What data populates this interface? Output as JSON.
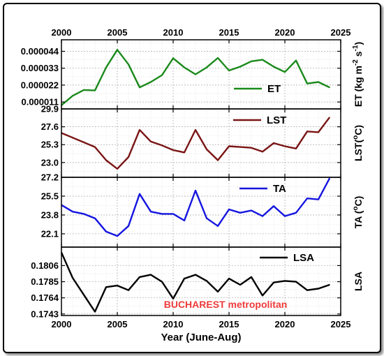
{
  "chart_data": {
    "type": "line",
    "xlabel": "Year (June-Aug)",
    "x_ticks": [
      "2000",
      "2005",
      "2010",
      "2015",
      "2020",
      "2025"
    ],
    "xlim": [
      2000,
      2025
    ],
    "annotation": "BUCHAREST metropolitan",
    "grid": true,
    "panels": [
      {
        "name": "ET",
        "ylabel": "ET (kg m⁻² s⁻¹)",
        "ylabel_parts": [
          "ET (kg m",
          "-2",
          " s",
          "-1",
          ")"
        ],
        "color": "#1a8a1a",
        "ylim": [
          6.5e-06,
          5.15e-05
        ],
        "y_ticks": [
          "0.000011",
          "0.000022",
          "0.000033",
          "0.000044"
        ],
        "y_tick_values": [
          1.1e-05,
          2.2e-05,
          3.3e-05,
          4.4e-05
        ],
        "legend": "ET",
        "x": [
          2000,
          2001,
          2002,
          2003,
          2004,
          2005,
          2006,
          2007,
          2008,
          2009,
          2010,
          2011,
          2012,
          2013,
          2014,
          2015,
          2016,
          2017,
          2018,
          2019,
          2020,
          2021,
          2022,
          2023,
          2024
        ],
        "values": [
          8.9e-06,
          1.5e-05,
          1.88e-05,
          1.85e-05,
          3.35e-05,
          4.5e-05,
          3.55e-05,
          2.05e-05,
          2.4e-05,
          2.85e-05,
          3.95e-05,
          3.35e-05,
          2.9e-05,
          3.35e-05,
          3.97e-05,
          3.15e-05,
          3.4e-05,
          3.75e-05,
          3.85e-05,
          3.4e-05,
          3.05e-05,
          3.8e-05,
          2.3e-05,
          2.4e-05,
          2.05e-05
        ]
      },
      {
        "name": "LST",
        "ylabel": "LST(°C)",
        "ylabel_parts": [
          "LST(",
          "o",
          "C)"
        ],
        "color": "#7a1414",
        "ylim": [
          21.1,
          29.9
        ],
        "y_ticks": [
          "23.0",
          "25.3",
          "27.6",
          "29.9"
        ],
        "y_tick_values": [
          23.0,
          25.3,
          27.6,
          29.9
        ],
        "legend": "LST",
        "x": [
          2000,
          2001,
          2002,
          2003,
          2004,
          2005,
          2006,
          2007,
          2008,
          2009,
          2010,
          2011,
          2012,
          2013,
          2014,
          2015,
          2016,
          2017,
          2018,
          2019,
          2020,
          2021,
          2022,
          2023,
          2024
        ],
        "values": [
          26.8,
          26.2,
          25.6,
          25.0,
          23.3,
          22.2,
          23.7,
          27.2,
          25.7,
          25.2,
          24.6,
          24.3,
          27.2,
          24.7,
          23.3,
          25.1,
          25.0,
          24.9,
          24.4,
          25.5,
          25.1,
          24.8,
          27.0,
          26.9,
          28.8
        ]
      },
      {
        "name": "TA",
        "ylabel": "TA (°C)",
        "ylabel_parts": [
          "TA (",
          "o",
          "C)"
        ],
        "color": "#1515e0",
        "ylim": [
          20.9,
          27.2
        ],
        "y_ticks": [
          "22.1",
          "23.8",
          "25.5",
          "27.2"
        ],
        "y_tick_values": [
          22.1,
          23.8,
          25.5,
          27.2
        ],
        "legend": "TA",
        "x": [
          2000,
          2001,
          2002,
          2003,
          2004,
          2005,
          2006,
          2007,
          2008,
          2009,
          2010,
          2011,
          2012,
          2013,
          2014,
          2015,
          2016,
          2017,
          2018,
          2019,
          2020,
          2021,
          2022,
          2023,
          2024
        ],
        "values": [
          24.7,
          24.1,
          23.9,
          23.5,
          22.3,
          21.9,
          22.8,
          25.7,
          24.1,
          23.9,
          23.9,
          23.3,
          26.0,
          23.5,
          22.8,
          24.3,
          24.0,
          24.2,
          23.7,
          24.6,
          23.7,
          24.0,
          25.3,
          25.2,
          27.1
        ]
      },
      {
        "name": "LSA",
        "ylabel": "LSA",
        "ylabel_parts": [
          "LSA"
        ],
        "color": "#000000",
        "ylim": [
          0.1741,
          0.183
        ],
        "y_ticks": [
          "0.1743",
          "0.1764",
          "0.1785",
          "0.1806"
        ],
        "y_tick_values": [
          0.1743,
          0.1764,
          0.1785,
          0.1806
        ],
        "legend": "LSA",
        "x": [
          2000,
          2001,
          2002,
          2003,
          2004,
          2005,
          2006,
          2007,
          2008,
          2009,
          2010,
          2011,
          2012,
          2013,
          2014,
          2015,
          2016,
          2017,
          2018,
          2019,
          2020,
          2021,
          2022,
          2023,
          2024
        ],
        "values": [
          0.1823,
          0.179,
          0.1768,
          0.1746,
          0.1778,
          0.178,
          0.1774,
          0.1791,
          0.1794,
          0.1785,
          0.1763,
          0.1789,
          0.1794,
          0.1786,
          0.1772,
          0.1789,
          0.1781,
          0.1791,
          0.1767,
          0.1784,
          0.1786,
          0.1785,
          0.1774,
          0.1776,
          0.1781
        ]
      }
    ]
  }
}
